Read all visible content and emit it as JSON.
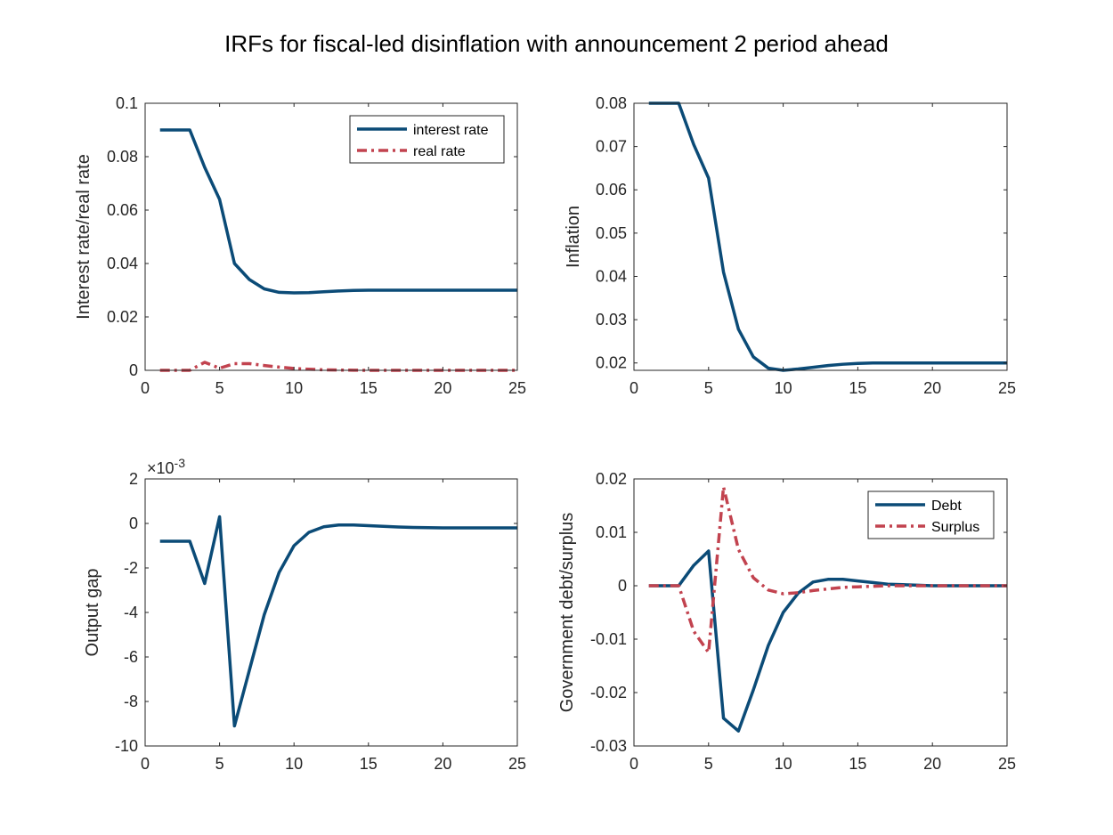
{
  "figure": {
    "title": "IRFs for fiscal-led disinflation with announcement 2 period ahead"
  },
  "colors": {
    "blue": "#0b4b77",
    "red": "#c2434f",
    "axis": "#262626"
  },
  "chart_data": [
    {
      "type": "line",
      "ylabel": "Interest rate/real rate",
      "xlabel": "",
      "xlim": [
        0,
        25
      ],
      "ylim": [
        0,
        0.1
      ],
      "xticks": [
        0,
        5,
        10,
        15,
        20,
        25
      ],
      "yticks": [
        0,
        0.02,
        0.04,
        0.06,
        0.08,
        0.1
      ],
      "ytick_labels": [
        "0",
        "0.02",
        "0.04",
        "0.06",
        "0.08",
        "0.1"
      ],
      "exponent_label": "",
      "legend": "top-right",
      "x": [
        1,
        2,
        3,
        4,
        5,
        6,
        7,
        8,
        9,
        10,
        11,
        12,
        13,
        14,
        15,
        16,
        17,
        18,
        19,
        20,
        21,
        22,
        23,
        24,
        25
      ],
      "series": [
        {
          "name": "interest rate",
          "style": "solid",
          "color": "#0b4b77",
          "values": [
            0.09,
            0.09,
            0.09,
            0.076,
            0.064,
            0.04,
            0.034,
            0.0305,
            0.0292,
            0.029,
            0.0291,
            0.0294,
            0.0297,
            0.0299,
            0.03,
            0.03,
            0.03,
            0.03,
            0.03,
            0.03,
            0.03,
            0.03,
            0.03,
            0.03,
            0.03
          ]
        },
        {
          "name": "real rate",
          "style": "dashdot",
          "color": "#c2434f",
          "values": [
            0,
            0,
            0,
            0.003,
            0.0008,
            0.0025,
            0.0025,
            0.0018,
            0.0012,
            0.0007,
            0.0004,
            0.0002,
            0.0001,
            5e-05,
            0,
            0,
            0,
            0,
            0,
            0,
            0,
            0,
            0,
            0,
            0
          ]
        }
      ]
    },
    {
      "type": "line",
      "ylabel": "Inflation",
      "xlabel": "",
      "xlim": [
        0,
        25
      ],
      "ylim": [
        0.0183,
        0.08
      ],
      "xticks": [
        0,
        5,
        10,
        15,
        20,
        25
      ],
      "yticks": [
        0.02,
        0.03,
        0.04,
        0.05,
        0.06,
        0.07,
        0.08
      ],
      "ytick_labels": [
        "0.02",
        "0.03",
        "0.04",
        "0.05",
        "0.06",
        "0.07",
        "0.08"
      ],
      "exponent_label": "",
      "legend": "none",
      "x": [
        1,
        2,
        3,
        4,
        5,
        6,
        7,
        8,
        9,
        10,
        11,
        12,
        13,
        14,
        15,
        16,
        17,
        18,
        19,
        20,
        21,
        22,
        23,
        24,
        25
      ],
      "series": [
        {
          "name": "",
          "style": "solid",
          "color": "#0b4b77",
          "values": [
            0.08,
            0.08,
            0.08,
            0.0705,
            0.0627,
            0.041,
            0.0278,
            0.0214,
            0.0188,
            0.0183,
            0.0186,
            0.019,
            0.0194,
            0.0197,
            0.0199,
            0.02,
            0.02,
            0.02,
            0.02,
            0.02,
            0.02,
            0.02,
            0.02,
            0.02,
            0.02
          ]
        }
      ]
    },
    {
      "type": "line",
      "ylabel": "Output gap",
      "xlabel": "",
      "xlim": [
        0,
        25
      ],
      "ylim": [
        -10,
        2
      ],
      "xticks": [
        0,
        5,
        10,
        15,
        20,
        25
      ],
      "yticks": [
        -10,
        -8,
        -6,
        -4,
        -2,
        0,
        2
      ],
      "ytick_labels": [
        "-10",
        "-8",
        "-6",
        "-4",
        "-2",
        "0",
        "2"
      ],
      "exponent_label": "×10",
      "exponent_power": "-3",
      "legend": "none",
      "x": [
        1,
        2,
        3,
        4,
        5,
        6,
        7,
        8,
        9,
        10,
        11,
        12,
        13,
        14,
        15,
        16,
        17,
        18,
        19,
        20,
        21,
        22,
        23,
        24,
        25
      ],
      "series": [
        {
          "name": "",
          "style": "solid",
          "color": "#0b4b77",
          "values": [
            -0.8,
            -0.8,
            -0.8,
            -2.7,
            0.3,
            -9.1,
            -6.6,
            -4.1,
            -2.2,
            -1.0,
            -0.4,
            -0.15,
            -0.07,
            -0.07,
            -0.1,
            -0.13,
            -0.16,
            -0.18,
            -0.19,
            -0.2,
            -0.2,
            -0.2,
            -0.2,
            -0.2,
            -0.2
          ]
        }
      ]
    },
    {
      "type": "line",
      "ylabel": "Government debt/surplus",
      "xlabel": "",
      "xlim": [
        0,
        25
      ],
      "ylim": [
        -0.03,
        0.02
      ],
      "xticks": [
        0,
        5,
        10,
        15,
        20,
        25
      ],
      "yticks": [
        -0.03,
        -0.02,
        -0.01,
        0,
        0.01,
        0.02
      ],
      "ytick_labels": [
        "-0.03",
        "-0.02",
        "-0.01",
        "0",
        "0.01",
        "0.02"
      ],
      "exponent_label": "",
      "legend": "top-right",
      "x": [
        1,
        2,
        3,
        4,
        5,
        6,
        7,
        8,
        9,
        10,
        11,
        12,
        13,
        14,
        15,
        16,
        17,
        18,
        19,
        20,
        21,
        22,
        23,
        24,
        25
      ],
      "series": [
        {
          "name": "Debt",
          "style": "solid",
          "color": "#0b4b77",
          "values": [
            0,
            0,
            0,
            0.0038,
            0.0065,
            -0.0248,
            -0.0272,
            -0.0195,
            -0.0112,
            -0.005,
            -0.0014,
            0.0007,
            0.0012,
            0.0012,
            0.0009,
            0.0006,
            0.0003,
            0.0002,
            0.0001,
            0,
            0,
            0,
            0,
            0,
            0
          ]
        },
        {
          "name": "Surplus",
          "style": "dashdot",
          "color": "#c2434f",
          "values": [
            0,
            0,
            0,
            -0.0085,
            -0.0125,
            0.0185,
            0.0068,
            0.0015,
            -0.0008,
            -0.0015,
            -0.0013,
            -0.0009,
            -0.0006,
            -0.0003,
            -0.0002,
            -0.0001,
            0,
            0,
            0,
            0,
            0,
            0,
            0,
            0,
            0
          ]
        }
      ]
    }
  ]
}
